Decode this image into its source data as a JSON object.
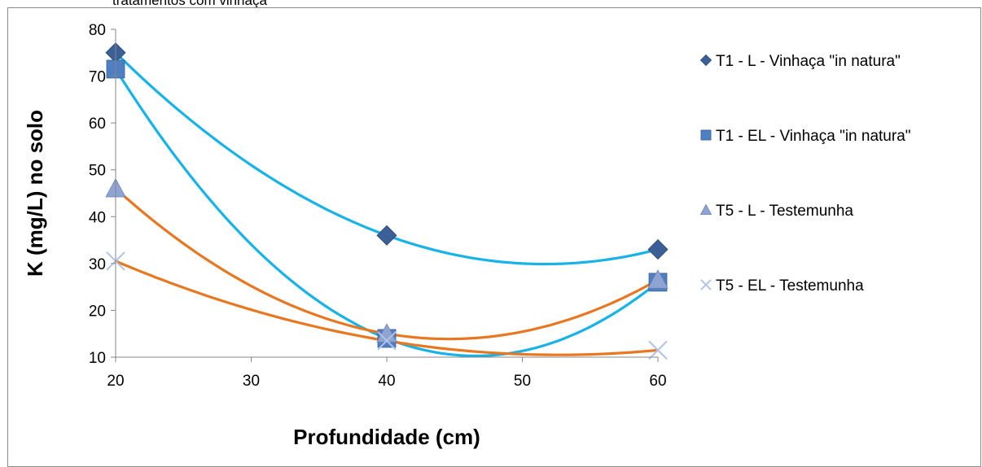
{
  "page": {
    "title": "tratamentos com vinhaça"
  },
  "chart_data": {
    "type": "scatter",
    "title": "",
    "xlabel": "Profundidade (cm)",
    "ylabel": "K (mg/L) no solo",
    "xlim": [
      20,
      60
    ],
    "ylim": [
      10,
      80
    ],
    "xticks": [
      20,
      30,
      40,
      50,
      60
    ],
    "yticks": [
      10,
      20,
      30,
      40,
      50,
      60,
      70,
      80
    ],
    "grid": false,
    "legend_position": "right",
    "series": [
      {
        "name": "T1 - L - Vinhaça \"in natura\"",
        "marker": "diamond",
        "color": "#3c5f98",
        "x": [
          20,
          40,
          60
        ],
        "y": [
          75,
          36,
          33
        ],
        "trendline_color": "#17b3e8"
      },
      {
        "name": "T1 - EL - Vinhaça \"in natura\"",
        "marker": "square",
        "color": "#4f7fc0",
        "x": [
          20,
          40,
          60
        ],
        "y": [
          71.5,
          14,
          26
        ],
        "trendline_color": "#17b3e8"
      },
      {
        "name": "T5 - L - Testemunha",
        "marker": "triangle",
        "color": "#8fa4d2",
        "x": [
          20,
          40,
          60
        ],
        "y": [
          46,
          15,
          26.5
        ],
        "trendline_color": "#e87722"
      },
      {
        "name": "T5 - EL - Testemunha",
        "marker": "x",
        "color": "#b3c2e6",
        "x": [
          20,
          40,
          60
        ],
        "y": [
          30.5,
          13.5,
          11.5
        ],
        "trendline_color": "#e87722"
      }
    ]
  }
}
